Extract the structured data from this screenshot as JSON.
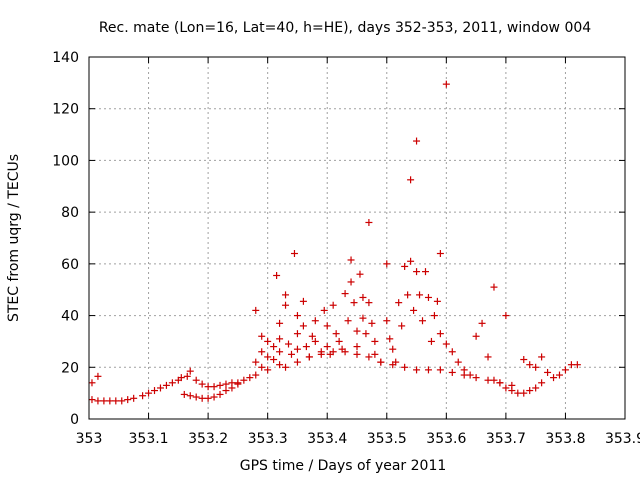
{
  "chart_data": {
    "type": "scatter",
    "title": "Rec. mate (Lon=16, Lat=40, h=HE), days 352-353, 2011, window 004",
    "xlabel": "GPS time / Days of year 2011",
    "ylabel": "STEC from uqrg / TECUs",
    "xlim": [
      353,
      353.9
    ],
    "ylim": [
      0,
      140
    ],
    "xticks": [
      "353",
      "353.1",
      "353.2",
      "353.3",
      "353.4",
      "353.5",
      "353.6",
      "353.7",
      "353.8",
      "353.9"
    ],
    "yticks": [
      "0",
      "20",
      "40",
      "60",
      "80",
      "100",
      "120",
      "140"
    ],
    "grid": true,
    "marker": "+",
    "color": "#cc0000",
    "series": [
      {
        "points": [
          [
            353.005,
            14
          ],
          [
            353.015,
            16.5
          ],
          [
            353.005,
            7.5
          ],
          [
            353.015,
            7
          ],
          [
            353.025,
            7
          ],
          [
            353.035,
            7
          ],
          [
            353.045,
            7
          ],
          [
            353.055,
            7
          ],
          [
            353.065,
            7.5
          ],
          [
            353.075,
            8
          ],
          [
            353.09,
            9
          ],
          [
            353.1,
            10
          ],
          [
            353.11,
            11
          ],
          [
            353.12,
            12
          ],
          [
            353.13,
            13
          ],
          [
            353.14,
            14
          ],
          [
            353.15,
            15
          ],
          [
            353.155,
            16
          ],
          [
            353.165,
            16.5
          ],
          [
            353.17,
            18.5
          ],
          [
            353.18,
            15
          ],
          [
            353.19,
            13.5
          ],
          [
            353.2,
            12.5
          ],
          [
            353.21,
            12.5
          ],
          [
            353.22,
            13
          ],
          [
            353.23,
            13.5
          ],
          [
            353.24,
            14
          ],
          [
            353.25,
            14
          ],
          [
            353.26,
            15
          ],
          [
            353.27,
            16
          ],
          [
            353.16,
            9.5
          ],
          [
            353.17,
            9
          ],
          [
            353.18,
            8.5
          ],
          [
            353.19,
            8
          ],
          [
            353.2,
            8
          ],
          [
            353.21,
            8.5
          ],
          [
            353.22,
            9.5
          ],
          [
            353.23,
            11
          ],
          [
            353.24,
            12
          ],
          [
            353.25,
            13.5
          ],
          [
            353.28,
            42
          ],
          [
            353.28,
            22
          ],
          [
            353.28,
            17
          ],
          [
            353.29,
            32
          ],
          [
            353.29,
            26
          ],
          [
            353.29,
            20
          ],
          [
            353.3,
            30
          ],
          [
            353.3,
            24
          ],
          [
            353.3,
            19
          ],
          [
            353.31,
            28
          ],
          [
            353.31,
            23
          ],
          [
            353.315,
            55.5
          ],
          [
            353.32,
            37
          ],
          [
            353.32,
            31
          ],
          [
            353.32,
            26
          ],
          [
            353.32,
            21
          ],
          [
            353.33,
            48
          ],
          [
            353.33,
            44
          ],
          [
            353.335,
            29
          ],
          [
            353.34,
            25
          ],
          [
            353.345,
            64
          ],
          [
            353.35,
            40
          ],
          [
            353.35,
            33
          ],
          [
            353.35,
            27
          ],
          [
            353.36,
            45.5
          ],
          [
            353.36,
            36
          ],
          [
            353.365,
            28
          ],
          [
            353.37,
            24
          ],
          [
            353.375,
            32
          ],
          [
            353.38,
            38
          ],
          [
            353.38,
            30
          ],
          [
            353.39,
            26
          ],
          [
            353.395,
            42
          ],
          [
            353.4,
            36
          ],
          [
            353.4,
            28
          ],
          [
            353.405,
            25
          ],
          [
            353.41,
            44
          ],
          [
            353.415,
            33
          ],
          [
            353.42,
            30
          ],
          [
            353.425,
            27
          ],
          [
            353.43,
            48.5
          ],
          [
            353.435,
            38
          ],
          [
            353.44,
            61.5
          ],
          [
            353.44,
            53
          ],
          [
            353.445,
            45
          ],
          [
            353.45,
            34
          ],
          [
            353.45,
            28
          ],
          [
            353.455,
            56
          ],
          [
            353.46,
            47
          ],
          [
            353.46,
            39
          ],
          [
            353.465,
            33
          ],
          [
            353.47,
            76
          ],
          [
            353.47,
            45
          ],
          [
            353.475,
            37
          ],
          [
            353.48,
            30
          ],
          [
            353.48,
            25
          ],
          [
            353.49,
            22
          ],
          [
            353.5,
            60
          ],
          [
            353.5,
            38
          ],
          [
            353.505,
            31
          ],
          [
            353.51,
            27
          ],
          [
            353.515,
            22
          ],
          [
            353.52,
            45
          ],
          [
            353.525,
            36
          ],
          [
            353.53,
            59
          ],
          [
            353.535,
            48
          ],
          [
            353.54,
            92.5
          ],
          [
            353.54,
            61
          ],
          [
            353.545,
            42
          ],
          [
            353.55,
            107.5
          ],
          [
            353.55,
            57
          ],
          [
            353.555,
            48
          ],
          [
            353.56,
            38
          ],
          [
            353.565,
            57
          ],
          [
            353.57,
            47
          ],
          [
            353.575,
            30
          ],
          [
            353.58,
            40
          ],
          [
            353.585,
            45.5
          ],
          [
            353.59,
            64
          ],
          [
            353.59,
            33
          ],
          [
            353.6,
            129.5
          ],
          [
            353.6,
            29
          ],
          [
            353.61,
            26
          ],
          [
            353.62,
            22
          ],
          [
            353.63,
            19
          ],
          [
            353.64,
            17
          ],
          [
            353.65,
            32
          ],
          [
            353.66,
            37
          ],
          [
            353.67,
            24
          ],
          [
            353.68,
            51
          ],
          [
            353.68,
            15
          ],
          [
            353.69,
            14
          ],
          [
            353.7,
            40
          ],
          [
            353.7,
            12
          ],
          [
            353.71,
            11
          ],
          [
            353.72,
            10
          ],
          [
            353.73,
            10
          ],
          [
            353.74,
            11
          ],
          [
            353.75,
            12
          ],
          [
            353.76,
            14
          ],
          [
            353.73,
            23
          ],
          [
            353.74,
            21
          ],
          [
            353.75,
            20
          ],
          [
            353.76,
            24
          ],
          [
            353.77,
            18
          ],
          [
            353.78,
            16
          ],
          [
            353.79,
            17
          ],
          [
            353.8,
            19
          ],
          [
            353.81,
            21
          ],
          [
            353.82,
            21
          ],
          [
            353.33,
            20
          ],
          [
            353.35,
            22
          ],
          [
            353.37,
            24
          ],
          [
            353.39,
            25
          ],
          [
            353.41,
            26
          ],
          [
            353.43,
            26
          ],
          [
            353.45,
            25
          ],
          [
            353.47,
            24
          ],
          [
            353.49,
            22
          ],
          [
            353.51,
            21
          ],
          [
            353.53,
            20
          ],
          [
            353.55,
            19
          ],
          [
            353.57,
            19
          ],
          [
            353.59,
            19
          ],
          [
            353.61,
            18
          ],
          [
            353.63,
            17
          ],
          [
            353.65,
            16
          ],
          [
            353.67,
            15
          ],
          [
            353.69,
            14
          ],
          [
            353.71,
            13
          ]
        ]
      }
    ]
  }
}
